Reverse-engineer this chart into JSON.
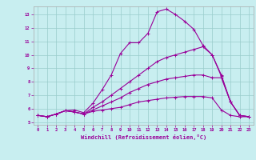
{
  "background_color": "#c8eef0",
  "line_color": "#990099",
  "grid_color": "#99cccc",
  "xlim": [
    -0.5,
    23.5
  ],
  "ylim": [
    4.8,
    13.6
  ],
  "xticks": [
    0,
    1,
    2,
    3,
    4,
    5,
    6,
    7,
    8,
    9,
    10,
    11,
    12,
    13,
    14,
    15,
    16,
    17,
    18,
    19,
    20,
    21,
    22,
    23
  ],
  "yticks": [
    5,
    6,
    7,
    8,
    9,
    10,
    11,
    12,
    13
  ],
  "xlabel": "Windchill (Refroidissement éolien,°C)",
  "line1_x": [
    0,
    1,
    2,
    3,
    4,
    5,
    6,
    7,
    8,
    9,
    10,
    11,
    12,
    13,
    14,
    15,
    16,
    17,
    18,
    19,
    20,
    21,
    22,
    23
  ],
  "line1_y": [
    5.5,
    5.4,
    5.6,
    5.85,
    5.9,
    5.7,
    6.4,
    7.4,
    8.5,
    10.1,
    10.9,
    10.9,
    11.6,
    13.2,
    13.4,
    13.0,
    12.5,
    11.9,
    10.7,
    10.0,
    8.4,
    6.5,
    5.5,
    5.4
  ],
  "line2_x": [
    0,
    1,
    2,
    3,
    4,
    5,
    6,
    7,
    8,
    9,
    10,
    11,
    12,
    13,
    14,
    15,
    16,
    17,
    18,
    19,
    20,
    21,
    22,
    23
  ],
  "line2_y": [
    5.5,
    5.4,
    5.6,
    5.85,
    5.75,
    5.6,
    6.1,
    6.5,
    7.0,
    7.5,
    8.0,
    8.5,
    9.0,
    9.5,
    9.8,
    10.0,
    10.2,
    10.4,
    10.6,
    10.0,
    8.5,
    6.5,
    5.5,
    5.4
  ],
  "line3_x": [
    0,
    1,
    2,
    3,
    4,
    5,
    6,
    7,
    8,
    9,
    10,
    11,
    12,
    13,
    14,
    15,
    16,
    17,
    18,
    19,
    20,
    21,
    22,
    23
  ],
  "line3_y": [
    5.5,
    5.4,
    5.6,
    5.85,
    5.75,
    5.6,
    5.9,
    6.2,
    6.5,
    6.8,
    7.2,
    7.5,
    7.8,
    8.0,
    8.2,
    8.3,
    8.4,
    8.5,
    8.5,
    8.3,
    8.3,
    6.5,
    5.5,
    5.4
  ],
  "line4_x": [
    0,
    1,
    2,
    3,
    4,
    5,
    6,
    7,
    8,
    9,
    10,
    11,
    12,
    13,
    14,
    15,
    16,
    17,
    18,
    19,
    20,
    21,
    22,
    23
  ],
  "line4_y": [
    5.5,
    5.4,
    5.6,
    5.85,
    5.75,
    5.6,
    5.8,
    5.9,
    6.0,
    6.1,
    6.3,
    6.5,
    6.6,
    6.7,
    6.8,
    6.85,
    6.9,
    6.9,
    6.9,
    6.8,
    5.9,
    5.5,
    5.4,
    5.4
  ],
  "marker_size": 3,
  "line_width": 0.8,
  "tick_fontsize": 4.0,
  "xlabel_fontsize": 5.0
}
